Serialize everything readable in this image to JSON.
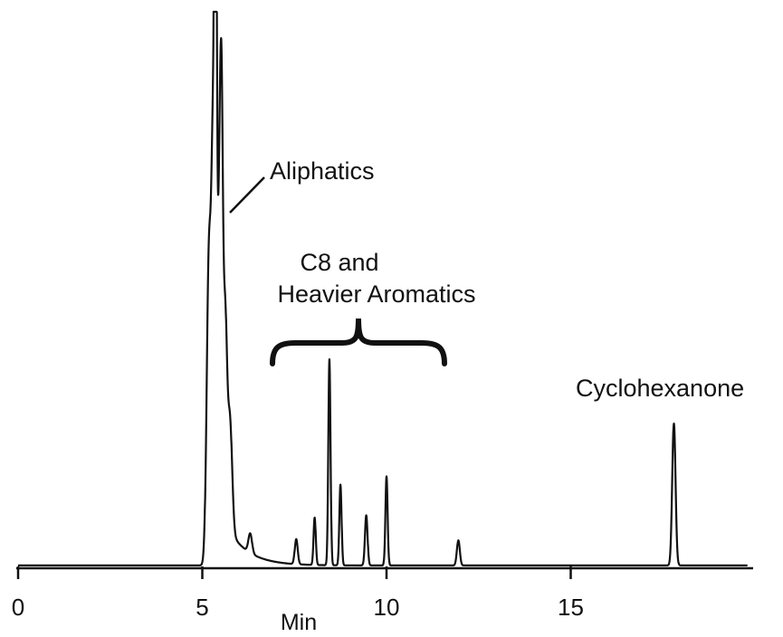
{
  "chart_data": {
    "type": "line",
    "title": "",
    "xlabel": "Min",
    "ylabel": "",
    "xlim": [
      0,
      19.8
    ],
    "ylim": [
      0,
      1.0
    ],
    "grid": false,
    "xticks": [
      0,
      5,
      10,
      15
    ],
    "xtick_labels": [
      "0",
      "5",
      "10",
      "15"
    ],
    "baseline": 0.005,
    "peaks": [
      {
        "x": 5.18,
        "h": 0.55,
        "w": 0.06
      },
      {
        "x": 5.3,
        "h": 0.72,
        "w": 0.05
      },
      {
        "x": 5.36,
        "h": 1.0,
        "w": 0.03
      },
      {
        "x": 5.45,
        "h": 0.45,
        "w": 0.05
      },
      {
        "x": 5.52,
        "h": 0.62,
        "w": 0.04
      },
      {
        "x": 5.62,
        "h": 0.36,
        "w": 0.05
      },
      {
        "x": 5.75,
        "h": 0.2,
        "w": 0.06
      },
      {
        "x": 6.3,
        "h": 0.035,
        "w": 0.05
      },
      {
        "x": 7.55,
        "h": 0.045,
        "w": 0.04
      },
      {
        "x": 8.05,
        "h": 0.085,
        "w": 0.03
      },
      {
        "x": 8.45,
        "h": 0.37,
        "w": 0.03
      },
      {
        "x": 8.75,
        "h": 0.145,
        "w": 0.03
      },
      {
        "x": 9.45,
        "h": 0.09,
        "w": 0.035
      },
      {
        "x": 10.0,
        "h": 0.16,
        "w": 0.03
      },
      {
        "x": 11.95,
        "h": 0.045,
        "w": 0.04
      },
      {
        "x": 17.8,
        "h": 0.255,
        "w": 0.045
      }
    ],
    "tail": {
      "start": 5.3,
      "amplitude": 0.14,
      "decay": 0.55
    },
    "annotations": [
      {
        "text": "Aliphatics"
      },
      {
        "text": "C8 and"
      },
      {
        "text": "Heavier Aromatics"
      },
      {
        "text": "Cyclohexanone"
      }
    ]
  }
}
